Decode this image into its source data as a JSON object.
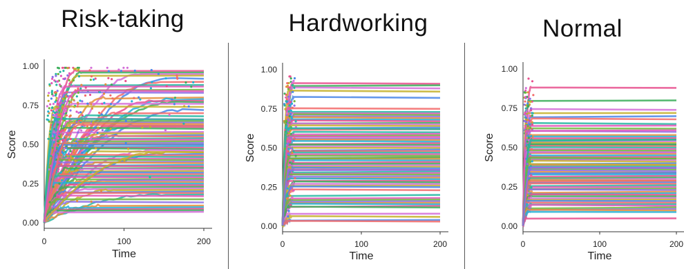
{
  "colors": [
    "#e8508e",
    "#f26a6a",
    "#e58e3c",
    "#c4b02c",
    "#6fb63c",
    "#3cae5a",
    "#27b7a2",
    "#24b1d6",
    "#4a86e8",
    "#8c6ee6",
    "#d36ed8",
    "#e356b8"
  ],
  "chart_data": [
    {
      "type": "line",
      "title": "Risk-taking",
      "xlabel": "Time",
      "ylabel": "Score",
      "xlim": [
        0,
        200
      ],
      "ylim": [
        0,
        1.0
      ],
      "xticks": [
        "0",
        "100",
        "200"
      ],
      "yticks": [
        "0.00",
        "0.25",
        "0.50",
        "0.75",
        "1.00"
      ],
      "grid": false,
      "legend": "none",
      "series_count": 80,
      "final_values": [
        0.97,
        0.96,
        0.95,
        0.94,
        0.92,
        0.9,
        0.88,
        0.87,
        0.85,
        0.83,
        0.8,
        0.79,
        0.78,
        0.77,
        0.76,
        0.74,
        0.72,
        0.7,
        0.68,
        0.66,
        0.65,
        0.64,
        0.63,
        0.62,
        0.61,
        0.6,
        0.58,
        0.57,
        0.56,
        0.55,
        0.54,
        0.53,
        0.52,
        0.51,
        0.5,
        0.49,
        0.48,
        0.47,
        0.46,
        0.45,
        0.44,
        0.43,
        0.42,
        0.41,
        0.4,
        0.39,
        0.38,
        0.37,
        0.36,
        0.35,
        0.34,
        0.33,
        0.32,
        0.31,
        0.3,
        0.29,
        0.28,
        0.27,
        0.26,
        0.25,
        0.24,
        0.23,
        0.22,
        0.21,
        0.2,
        0.19,
        0.18,
        0.17,
        0.15,
        0.13,
        0.11,
        0.1,
        0.09,
        0.08,
        0.07,
        0.45,
        0.5,
        0.62,
        0.66,
        0.84
      ],
      "convergence_time_range": [
        10,
        180
      ]
    },
    {
      "type": "line",
      "title": "Hardworking",
      "xlabel": "Time",
      "ylabel": "Score",
      "xlim": [
        0,
        200
      ],
      "ylim": [
        0,
        1.0
      ],
      "xticks": [
        "0",
        "100",
        "200"
      ],
      "yticks": [
        "0.00",
        "0.25",
        "0.50",
        "0.75",
        "1.00"
      ],
      "grid": false,
      "legend": "none",
      "series_count": 70,
      "final_values": [
        0.91,
        0.9,
        0.88,
        0.86,
        0.82,
        0.75,
        0.73,
        0.72,
        0.71,
        0.7,
        0.69,
        0.68,
        0.67,
        0.66,
        0.65,
        0.64,
        0.63,
        0.62,
        0.6,
        0.59,
        0.58,
        0.56,
        0.55,
        0.54,
        0.53,
        0.52,
        0.51,
        0.5,
        0.49,
        0.48,
        0.47,
        0.46,
        0.45,
        0.44,
        0.43,
        0.42,
        0.41,
        0.4,
        0.39,
        0.38,
        0.37,
        0.36,
        0.35,
        0.34,
        0.33,
        0.32,
        0.31,
        0.3,
        0.29,
        0.28,
        0.27,
        0.26,
        0.25,
        0.23,
        0.2,
        0.18,
        0.17,
        0.16,
        0.15,
        0.14,
        0.13,
        0.12,
        0.08,
        0.06,
        0.04,
        0.03,
        0.62,
        0.57,
        0.44,
        0.36
      ],
      "convergence_time_range": [
        5,
        15
      ]
    },
    {
      "type": "line",
      "title": "Normal",
      "xlabel": "Time",
      "ylabel": "Score",
      "xlim": [
        0,
        200
      ],
      "ylim": [
        0,
        1.0
      ],
      "xticks": [
        "0",
        "100",
        "200"
      ],
      "yticks": [
        "0.00",
        "0.25",
        "0.50",
        "0.75",
        "1.00"
      ],
      "grid": false,
      "legend": "none",
      "series_count": 70,
      "final_values": [
        0.88,
        0.8,
        0.74,
        0.72,
        0.7,
        0.68,
        0.65,
        0.64,
        0.62,
        0.6,
        0.58,
        0.57,
        0.56,
        0.55,
        0.54,
        0.53,
        0.52,
        0.51,
        0.5,
        0.49,
        0.48,
        0.47,
        0.46,
        0.45,
        0.44,
        0.43,
        0.42,
        0.41,
        0.4,
        0.39,
        0.38,
        0.37,
        0.36,
        0.35,
        0.34,
        0.33,
        0.32,
        0.31,
        0.3,
        0.29,
        0.28,
        0.27,
        0.26,
        0.25,
        0.24,
        0.23,
        0.22,
        0.21,
        0.2,
        0.19,
        0.18,
        0.17,
        0.16,
        0.15,
        0.14,
        0.13,
        0.12,
        0.11,
        0.1,
        0.09,
        0.05,
        0.52,
        0.47,
        0.39,
        0.34,
        0.29,
        0.55,
        0.61,
        0.43,
        0.37
      ],
      "convergence_time_range": [
        4,
        12
      ]
    }
  ]
}
